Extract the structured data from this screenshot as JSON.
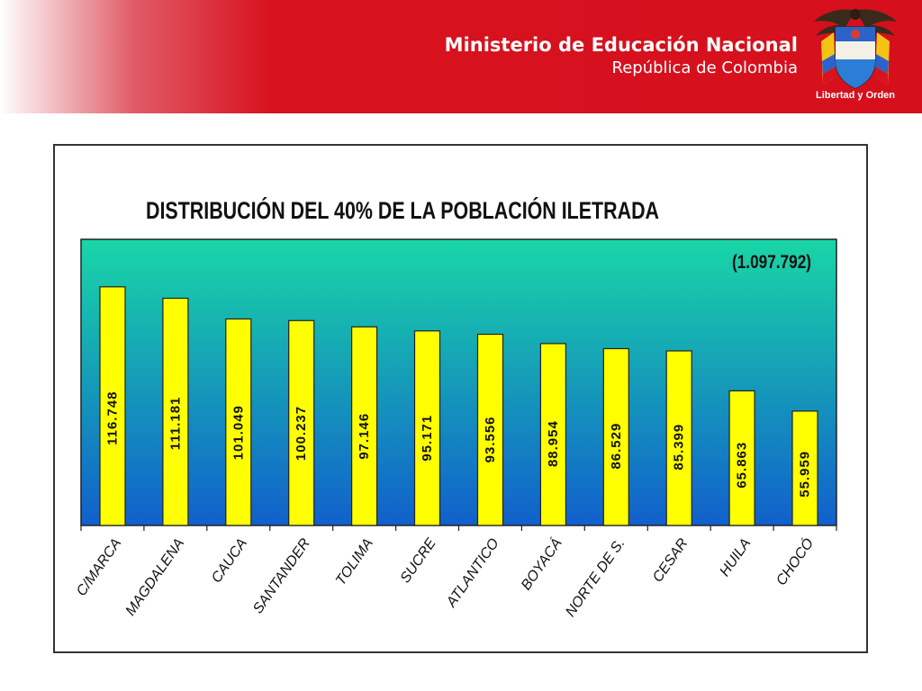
{
  "header": {
    "ministry_name": "Ministerio de Educación Nacional",
    "country": "República de Colombia",
    "motto": "Libertad y Orden",
    "logo_icon": "colombia-coat-of-arms-icon"
  },
  "colors": {
    "banner_red": "#d50f1c",
    "bar_fill": "#ffff00",
    "plot_top": "#19d6a6",
    "plot_bottom": "#1160cc"
  },
  "chart_data": {
    "type": "bar",
    "title": "DISTRIBUCIÓN DEL 40% DE LA POBLACIÓN ILETRADA",
    "annotation": "(1.097.792)",
    "categories": [
      "C/MARCA",
      "MAGDALENA",
      "CAUCA",
      "SANTANDER",
      "TOLIMA",
      "SUCRE",
      "ATLANTICO",
      "BOYACÁ",
      "NORTE DE S.",
      "CESAR",
      "HUILA",
      "CHOCÓ"
    ],
    "values": [
      116748,
      111181,
      101049,
      100237,
      97146,
      95171,
      93556,
      88954,
      86529,
      85399,
      65863,
      55959
    ],
    "value_labels": [
      "116.748",
      "111.181",
      "101.049",
      "100.237",
      "97.146",
      "95.171",
      "93.556",
      "88.954",
      "86.529",
      "85.399",
      "65.863",
      "55.959"
    ],
    "ylim": [
      0,
      140000
    ],
    "grid": false,
    "legend": "none",
    "xlabel": "",
    "ylabel": ""
  }
}
